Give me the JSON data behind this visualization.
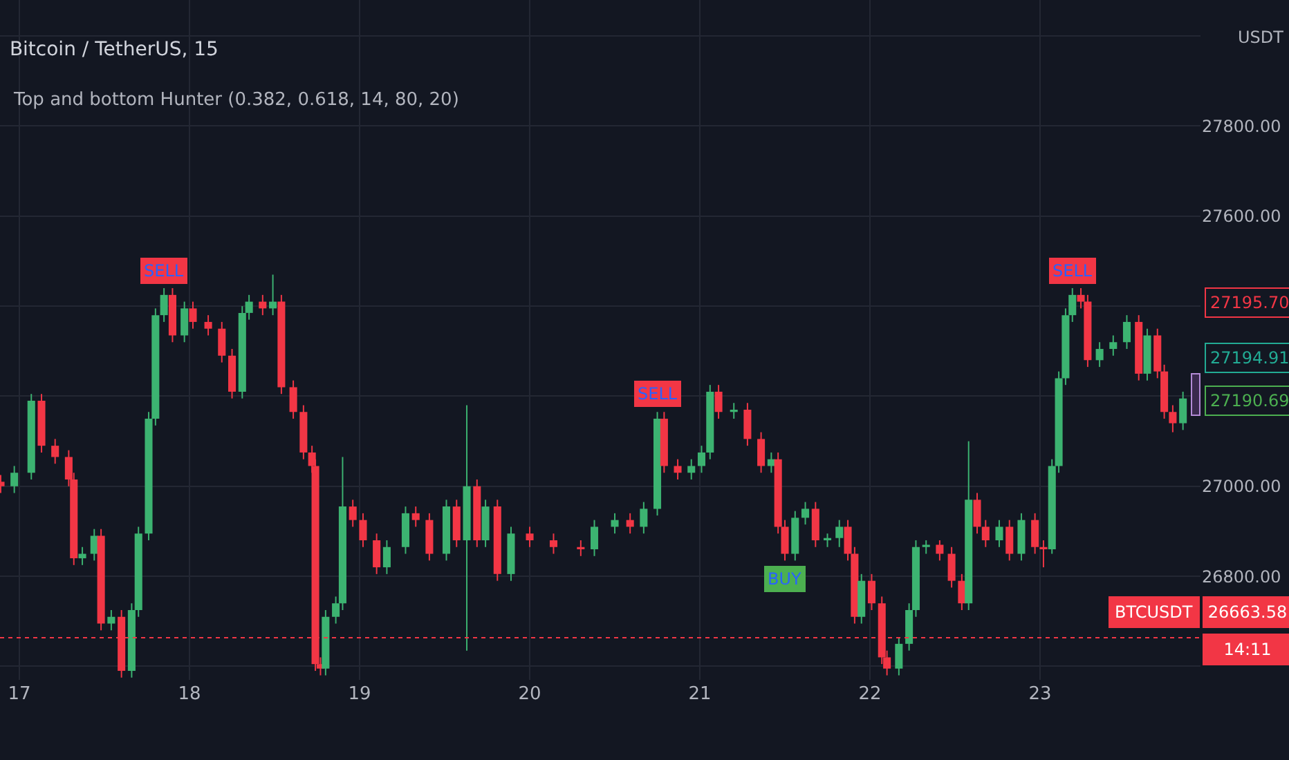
{
  "chart_data": {
    "type": "candlestick",
    "title": "Bitcoin / TetherUS, 15",
    "subtitle": "Top and bottom Hunter (0.382, 0.618, 14, 80, 20)",
    "ylabel": "USDT",
    "x": [
      16.89,
      16.97,
      17.07,
      17.13,
      17.21,
      17.29,
      17.32,
      17.37,
      17.44,
      17.48,
      17.54,
      17.6,
      17.66,
      17.7,
      17.76,
      17.8,
      17.85,
      17.9,
      17.97,
      18.02,
      18.11,
      18.19,
      18.25,
      18.31,
      18.35,
      18.43,
      18.49,
      18.54,
      18.61,
      18.67,
      18.72,
      18.74,
      18.77,
      18.8,
      18.86,
      18.9,
      18.96,
      19.02,
      19.1,
      19.16,
      19.27,
      19.33,
      19.41,
      19.51,
      19.57,
      19.63,
      19.69,
      19.74,
      19.81,
      19.89,
      20,
      20.14,
      20.3,
      20.38,
      20.5,
      20.59,
      20.67,
      20.75,
      20.79,
      20.87,
      20.95,
      21.01,
      21.06,
      21.11,
      21.2,
      21.28,
      21.36,
      21.42,
      21.46,
      21.5,
      21.56,
      21.62,
      21.68,
      21.75,
      21.82,
      21.87,
      21.91,
      21.95,
      22.01,
      22.07,
      22.1,
      22.17,
      22.23,
      22.27,
      22.33,
      22.41,
      22.48,
      22.54,
      22.58,
      22.63,
      22.68,
      22.76,
      22.82,
      22.89,
      22.97,
      23.02,
      23.07,
      23.11,
      23.15,
      23.19,
      23.24,
      23.28,
      23.35,
      23.43,
      23.51,
      23.58,
      23.63,
      23.69,
      23.73,
      23.78,
      23.84
    ],
    "ohlc": [
      [
        27010,
        27025,
        26985,
        27000
      ],
      [
        27000,
        27045,
        26985,
        27030
      ],
      [
        27030,
        27205,
        27015,
        27190
      ],
      [
        27190,
        27205,
        27075,
        27090
      ],
      [
        27090,
        27105,
        27050,
        27065
      ],
      [
        27065,
        27080,
        27000,
        27015
      ],
      [
        27015,
        27030,
        26825,
        26840
      ],
      [
        26840,
        26865,
        26825,
        26850
      ],
      [
        26850,
        26905,
        26835,
        26890
      ],
      [
        26890,
        26905,
        26680,
        26695
      ],
      [
        26695,
        26725,
        26680,
        26710
      ],
      [
        26710,
        26725,
        26575,
        26590
      ],
      [
        26590,
        26740,
        26575,
        26725
      ],
      [
        26725,
        26910,
        26710,
        26895
      ],
      [
        26895,
        27165,
        26880,
        27150
      ],
      [
        27150,
        27395,
        27135,
        27380
      ],
      [
        27380,
        27440,
        27365,
        27425
      ],
      [
        27425,
        27440,
        27320,
        27335
      ],
      [
        27335,
        27410,
        27320,
        27395
      ],
      [
        27395,
        27410,
        27350,
        27365
      ],
      [
        27365,
        27380,
        27335,
        27350
      ],
      [
        27350,
        27365,
        27275,
        27290
      ],
      [
        27290,
        27305,
        27195,
        27210
      ],
      [
        27210,
        27400,
        27195,
        27385
      ],
      [
        27385,
        27425,
        27370,
        27410
      ],
      [
        27410,
        27425,
        27380,
        27395
      ],
      [
        27395,
        27470,
        27380,
        27410
      ],
      [
        27410,
        27425,
        27205,
        27220
      ],
      [
        27220,
        27235,
        27150,
        27165
      ],
      [
        27165,
        27180,
        27060,
        27075
      ],
      [
        27075,
        27090,
        27030,
        27045
      ],
      [
        27045,
        27060,
        26590,
        26605
      ],
      [
        26605,
        26620,
        26580,
        26595
      ],
      [
        26595,
        26725,
        26580,
        26710
      ],
      [
        26710,
        26755,
        26695,
        26740
      ],
      [
        26740,
        27065,
        26725,
        26955
      ],
      [
        26955,
        26970,
        26910,
        26925
      ],
      [
        26925,
        26940,
        26865,
        26880
      ],
      [
        26880,
        26895,
        26805,
        26820
      ],
      [
        26820,
        26880,
        26805,
        26865
      ],
      [
        26865,
        26955,
        26850,
        26940
      ],
      [
        26940,
        26955,
        26910,
        26925
      ],
      [
        26925,
        26940,
        26835,
        26850
      ],
      [
        26850,
        26970,
        26835,
        26955
      ],
      [
        26955,
        26970,
        26865,
        26880
      ],
      [
        26880,
        27180,
        26635,
        27000
      ],
      [
        27000,
        27015,
        26865,
        26880
      ],
      [
        26880,
        26970,
        26865,
        26955
      ],
      [
        26955,
        26970,
        26790,
        26805
      ],
      [
        26805,
        26910,
        26790,
        26895
      ],
      [
        26895,
        26910,
        26865,
        26880
      ],
      [
        26880,
        26895,
        26850,
        26865
      ],
      [
        26865,
        26880,
        26845,
        26860
      ],
      [
        26860,
        26925,
        26845,
        26910
      ],
      [
        26910,
        26940,
        26895,
        26925
      ],
      [
        26925,
        26940,
        26895,
        26910
      ],
      [
        26910,
        26965,
        26895,
        26950
      ],
      [
        26950,
        27165,
        26935,
        27150
      ],
      [
        27150,
        27165,
        27030,
        27045
      ],
      [
        27045,
        27060,
        27015,
        27030
      ],
      [
        27030,
        27060,
        27015,
        27045
      ],
      [
        27045,
        27090,
        27030,
        27075
      ],
      [
        27075,
        27225,
        27060,
        27210
      ],
      [
        27210,
        27225,
        27150,
        27165
      ],
      [
        27165,
        27185,
        27150,
        27170
      ],
      [
        27170,
        27185,
        27090,
        27105
      ],
      [
        27105,
        27120,
        27030,
        27045
      ],
      [
        27045,
        27075,
        27030,
        27060
      ],
      [
        27060,
        27075,
        26895,
        26910
      ],
      [
        26910,
        26925,
        26835,
        26850
      ],
      [
        26850,
        26945,
        26835,
        26930
      ],
      [
        26930,
        26965,
        26915,
        26950
      ],
      [
        26950,
        26965,
        26865,
        26880
      ],
      [
        26880,
        26895,
        26865,
        26885
      ],
      [
        26885,
        26925,
        26865,
        26910
      ],
      [
        26910,
        26925,
        26835,
        26850
      ],
      [
        26850,
        26865,
        26695,
        26710
      ],
      [
        26710,
        26805,
        26695,
        26790
      ],
      [
        26790,
        26805,
        26725,
        26740
      ],
      [
        26740,
        26755,
        26605,
        26620
      ],
      [
        26620,
        26635,
        26580,
        26595
      ],
      [
        26595,
        26665,
        26580,
        26650
      ],
      [
        26650,
        26740,
        26635,
        26725
      ],
      [
        26725,
        26880,
        26710,
        26865
      ],
      [
        26865,
        26880,
        26850,
        26870
      ],
      [
        26870,
        26880,
        26835,
        26850
      ],
      [
        26850,
        26865,
        26775,
        26790
      ],
      [
        26790,
        26805,
        26725,
        26740
      ],
      [
        26740,
        27100,
        26725,
        26970
      ],
      [
        26970,
        26985,
        26895,
        26910
      ],
      [
        26910,
        26925,
        26865,
        26880
      ],
      [
        26880,
        26925,
        26865,
        26910
      ],
      [
        26910,
        26925,
        26835,
        26850
      ],
      [
        26850,
        26940,
        26835,
        26925
      ],
      [
        26925,
        26940,
        26850,
        26865
      ],
      [
        26865,
        26880,
        26820,
        26860
      ],
      [
        26860,
        27060,
        26850,
        27045
      ],
      [
        27045,
        27255,
        27030,
        27240
      ],
      [
        27240,
        27395,
        27225,
        27380
      ],
      [
        27380,
        27440,
        27365,
        27425
      ],
      [
        27425,
        27440,
        27395,
        27410
      ],
      [
        27410,
        27425,
        27265,
        27280
      ],
      [
        27280,
        27320,
        27265,
        27305
      ],
      [
        27305,
        27335,
        27290,
        27320
      ],
      [
        27320,
        27380,
        27305,
        27365
      ],
      [
        27365,
        27380,
        27235,
        27250
      ],
      [
        27250,
        27350,
        27235,
        27335
      ],
      [
        27335,
        27350,
        27240,
        27255
      ],
      [
        27255,
        27270,
        27150,
        27165
      ],
      [
        27165,
        27180,
        27120,
        27140
      ],
      [
        27140,
        27210,
        27125,
        27195
      ]
    ],
    "xlim": [
      16.886,
      23.943
    ],
    "xticks": [
      17,
      18,
      19,
      20,
      21,
      22,
      23
    ],
    "ylim": [
      26570,
      28080
    ],
    "yticks": [
      {
        "value": 26600,
        "label": null
      },
      {
        "value": 26800,
        "label": "26800.00"
      },
      {
        "value": 27000,
        "label": "27000.00"
      },
      {
        "value": 27200,
        "label": null
      },
      {
        "value": 27400,
        "label": null
      },
      {
        "value": 27600,
        "label": "27600.00"
      },
      {
        "value": 27800,
        "label": "27800.00"
      },
      {
        "value": 28000,
        "label": null
      }
    ],
    "grid": true,
    "ref_lines": [
      {
        "axis": "y",
        "value": 26663.58,
        "label": "BTCUSDT",
        "color": "#f23645",
        "line_style": "dotted"
      }
    ],
    "annotations": [
      {
        "text": "SELL",
        "x": 17.85,
        "y": 27440
      },
      {
        "text": "SELL",
        "x": 20.75,
        "y": 27165
      },
      {
        "text": "BUY",
        "x": 21.5,
        "y": 26835
      },
      {
        "text": "SELL",
        "x": 23.19,
        "y": 27440
      },
      "27195.70",
      "27194.91",
      "27190.69",
      "26663.58",
      "14:11"
    ]
  }
}
